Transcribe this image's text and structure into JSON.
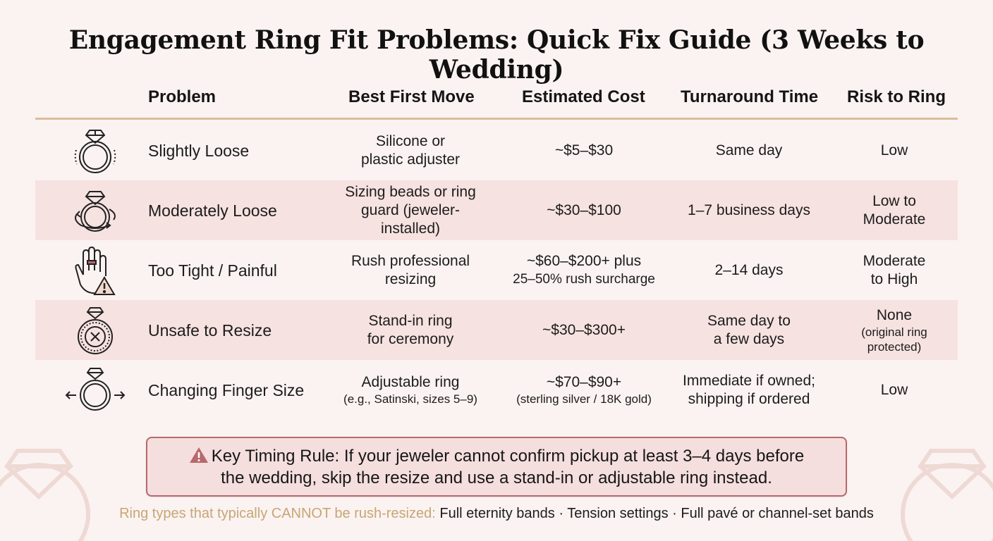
{
  "title": "Engagement Ring Fit Problems: Quick Fix Guide (3 Weeks to Wedding)",
  "columns": [
    "Problem",
    "Best First Move",
    "Estimated Cost",
    "Turnaround Time",
    "Risk to Ring"
  ],
  "rows": [
    {
      "icon": "ring-icon",
      "problem": "Slightly Loose",
      "move": [
        "Silicone or",
        "plastic adjuster"
      ],
      "move_note": "",
      "cost": [
        "~$5–$30"
      ],
      "cost_note": "",
      "time": [
        "Same day"
      ],
      "risk": [
        "Low"
      ],
      "risk_note": ""
    },
    {
      "icon": "ring-rotating-icon",
      "problem": "Moderately Loose",
      "move": [
        "Sizing beads or ring",
        "guard (jeweler-installed)"
      ],
      "move_note": "",
      "cost": [
        "~$30–$100"
      ],
      "cost_note": "",
      "time": [
        "1–7 business days"
      ],
      "risk": [
        "Low to",
        "Moderate"
      ],
      "risk_note": ""
    },
    {
      "icon": "hand-warning-icon",
      "problem": "Too Tight / Painful",
      "move": [
        "Rush professional",
        "resizing"
      ],
      "move_note": "",
      "cost": [
        "~$60–$200+ plus",
        "25–50% rush surcharge"
      ],
      "cost_note": "",
      "time": [
        "2–14 days"
      ],
      "risk": [
        "Moderate",
        "to High"
      ],
      "risk_note": ""
    },
    {
      "icon": "ring-x-icon",
      "problem": "Unsafe to Resize",
      "move": [
        "Stand-in ring",
        "for ceremony"
      ],
      "move_note": "",
      "cost": [
        "~$30–$300+"
      ],
      "cost_note": "",
      "time": [
        "Same day to",
        "a few days"
      ],
      "risk": [
        "None"
      ],
      "risk_note": "(original ring protected)"
    },
    {
      "icon": "ring-adjust-icon",
      "problem": "Changing Finger Size",
      "move": [
        "Adjustable ring"
      ],
      "move_note": "(e.g., Satinski, sizes 5–9)",
      "cost": [
        "~$70–$90+"
      ],
      "cost_note": "(sterling silver / 18K gold)",
      "time": [
        "Immediate if owned;",
        "shipping if ordered"
      ],
      "risk": [
        "Low"
      ],
      "risk_note": ""
    }
  ],
  "callout": {
    "icon": "warning-icon",
    "line1": "Key Timing Rule: If your jeweler cannot confirm pickup at least 3–4 days before",
    "line2": "the wedding, skip the resize and use a stand-in or adjustable ring instead."
  },
  "footer": {
    "label": "Ring types that typically CANNOT be rush-resized:",
    "value": "Full eternity bands · Tension settings · Full pavé or channel-set bands"
  },
  "colors": {
    "background": "#fbf3f1",
    "row_shade": "#f6e2e0",
    "header_rule": "#d9bd9b",
    "callout_border": "#b8696d",
    "callout_bg": "#f5dede",
    "warning": "#b8696d",
    "footer_label": "#c6a675"
  }
}
